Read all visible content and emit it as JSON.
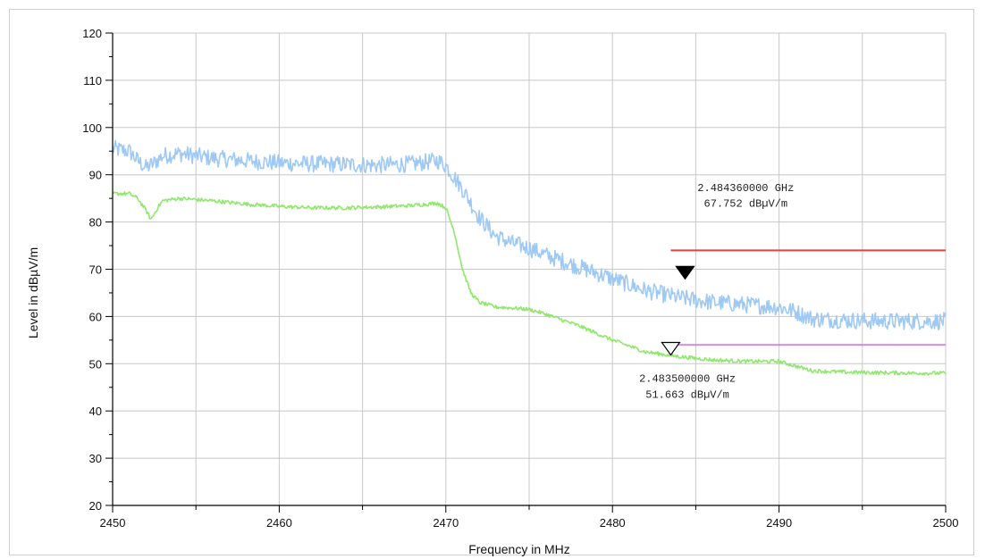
{
  "chart_data": {
    "type": "line",
    "title": "",
    "xlabel": "Frequency in MHz",
    "ylabel": "Level in dBµV/m",
    "xlim": [
      2450,
      2500
    ],
    "ylim": [
      20,
      120
    ],
    "x_ticks": [
      2450,
      2460,
      2470,
      2480,
      2490,
      2500
    ],
    "y_ticks": [
      20,
      30,
      40,
      50,
      60,
      70,
      80,
      90,
      100,
      110,
      120
    ],
    "grid": true,
    "colors": {
      "peak_trace": "#9ec9f5",
      "average_trace": "#8ee86a",
      "peak_limit": "#e84040",
      "average_limit": "#d070e0",
      "grid": "#c8c8c8"
    },
    "series": [
      {
        "x": [
          2450,
          2451,
          2451.5,
          2452,
          2452.5,
          2453,
          2454,
          2456,
          2458,
          2460,
          2462,
          2464,
          2466,
          2468,
          2469.5,
          2470,
          2471,
          2472,
          2473,
          2474,
          2475,
          2476,
          2478,
          2480,
          2482,
          2484,
          2486,
          2488,
          2490,
          2491,
          2492,
          2494,
          2496,
          2498,
          2500
        ],
        "y": [
          95.5,
          95,
          93,
          91.5,
          92.5,
          94,
          94.5,
          93.5,
          93,
          92.5,
          92.3,
          92.2,
          92,
          92.3,
          93,
          92,
          87,
          81,
          77,
          75.5,
          74.5,
          73,
          70.5,
          68,
          65.5,
          64,
          63,
          62.5,
          62,
          61,
          59.5,
          59.2,
          59,
          59,
          59
        ],
        "noise": 1.8
      },
      {
        "x": [
          2450,
          2451,
          2451.5,
          2452,
          2452.3,
          2452.7,
          2453,
          2454,
          2456,
          2458,
          2460,
          2462,
          2464,
          2466,
          2468,
          2469.5,
          2470,
          2470.5,
          2471,
          2471.5,
          2472,
          2473,
          2474,
          2475,
          2476,
          2478,
          2480,
          2482,
          2484,
          2486,
          2488,
          2490,
          2491,
          2492,
          2494,
          2496,
          2498,
          2500
        ],
        "y": [
          86,
          86,
          85,
          82.5,
          80.5,
          83,
          84.5,
          85,
          84.5,
          83.8,
          83.3,
          83,
          83,
          83.2,
          83.5,
          84,
          83,
          78,
          70,
          65,
          63,
          62,
          61.8,
          61.5,
          60.5,
          58,
          55,
          52.5,
          51.5,
          50.8,
          50.5,
          50.5,
          49.5,
          48.5,
          48.2,
          48.1,
          48,
          48
        ],
        "noise": 0.4
      }
    ],
    "limit_lines": [
      {
        "x_start": 2483.5,
        "x_end": 2500,
        "y": 74
      },
      {
        "x_start": 2483.5,
        "x_end": 2500,
        "y": 54
      }
    ],
    "markers": [
      {
        "x": 2484.36,
        "y": 67.752,
        "filled": true,
        "label_line1": "2.484360000 GHz",
        "label_line2": "67.752 dBµV/m",
        "label_x": 2488,
        "label_y1": 86.5,
        "label_y2": 83.2
      },
      {
        "x": 2483.5,
        "y": 51.663,
        "filled": false,
        "label_line1": "2.483500000 GHz",
        "label_line2": "51.663 dBµV/m",
        "label_x": 2484.5,
        "label_y1": 46.2,
        "label_y2": 42.8
      }
    ]
  }
}
